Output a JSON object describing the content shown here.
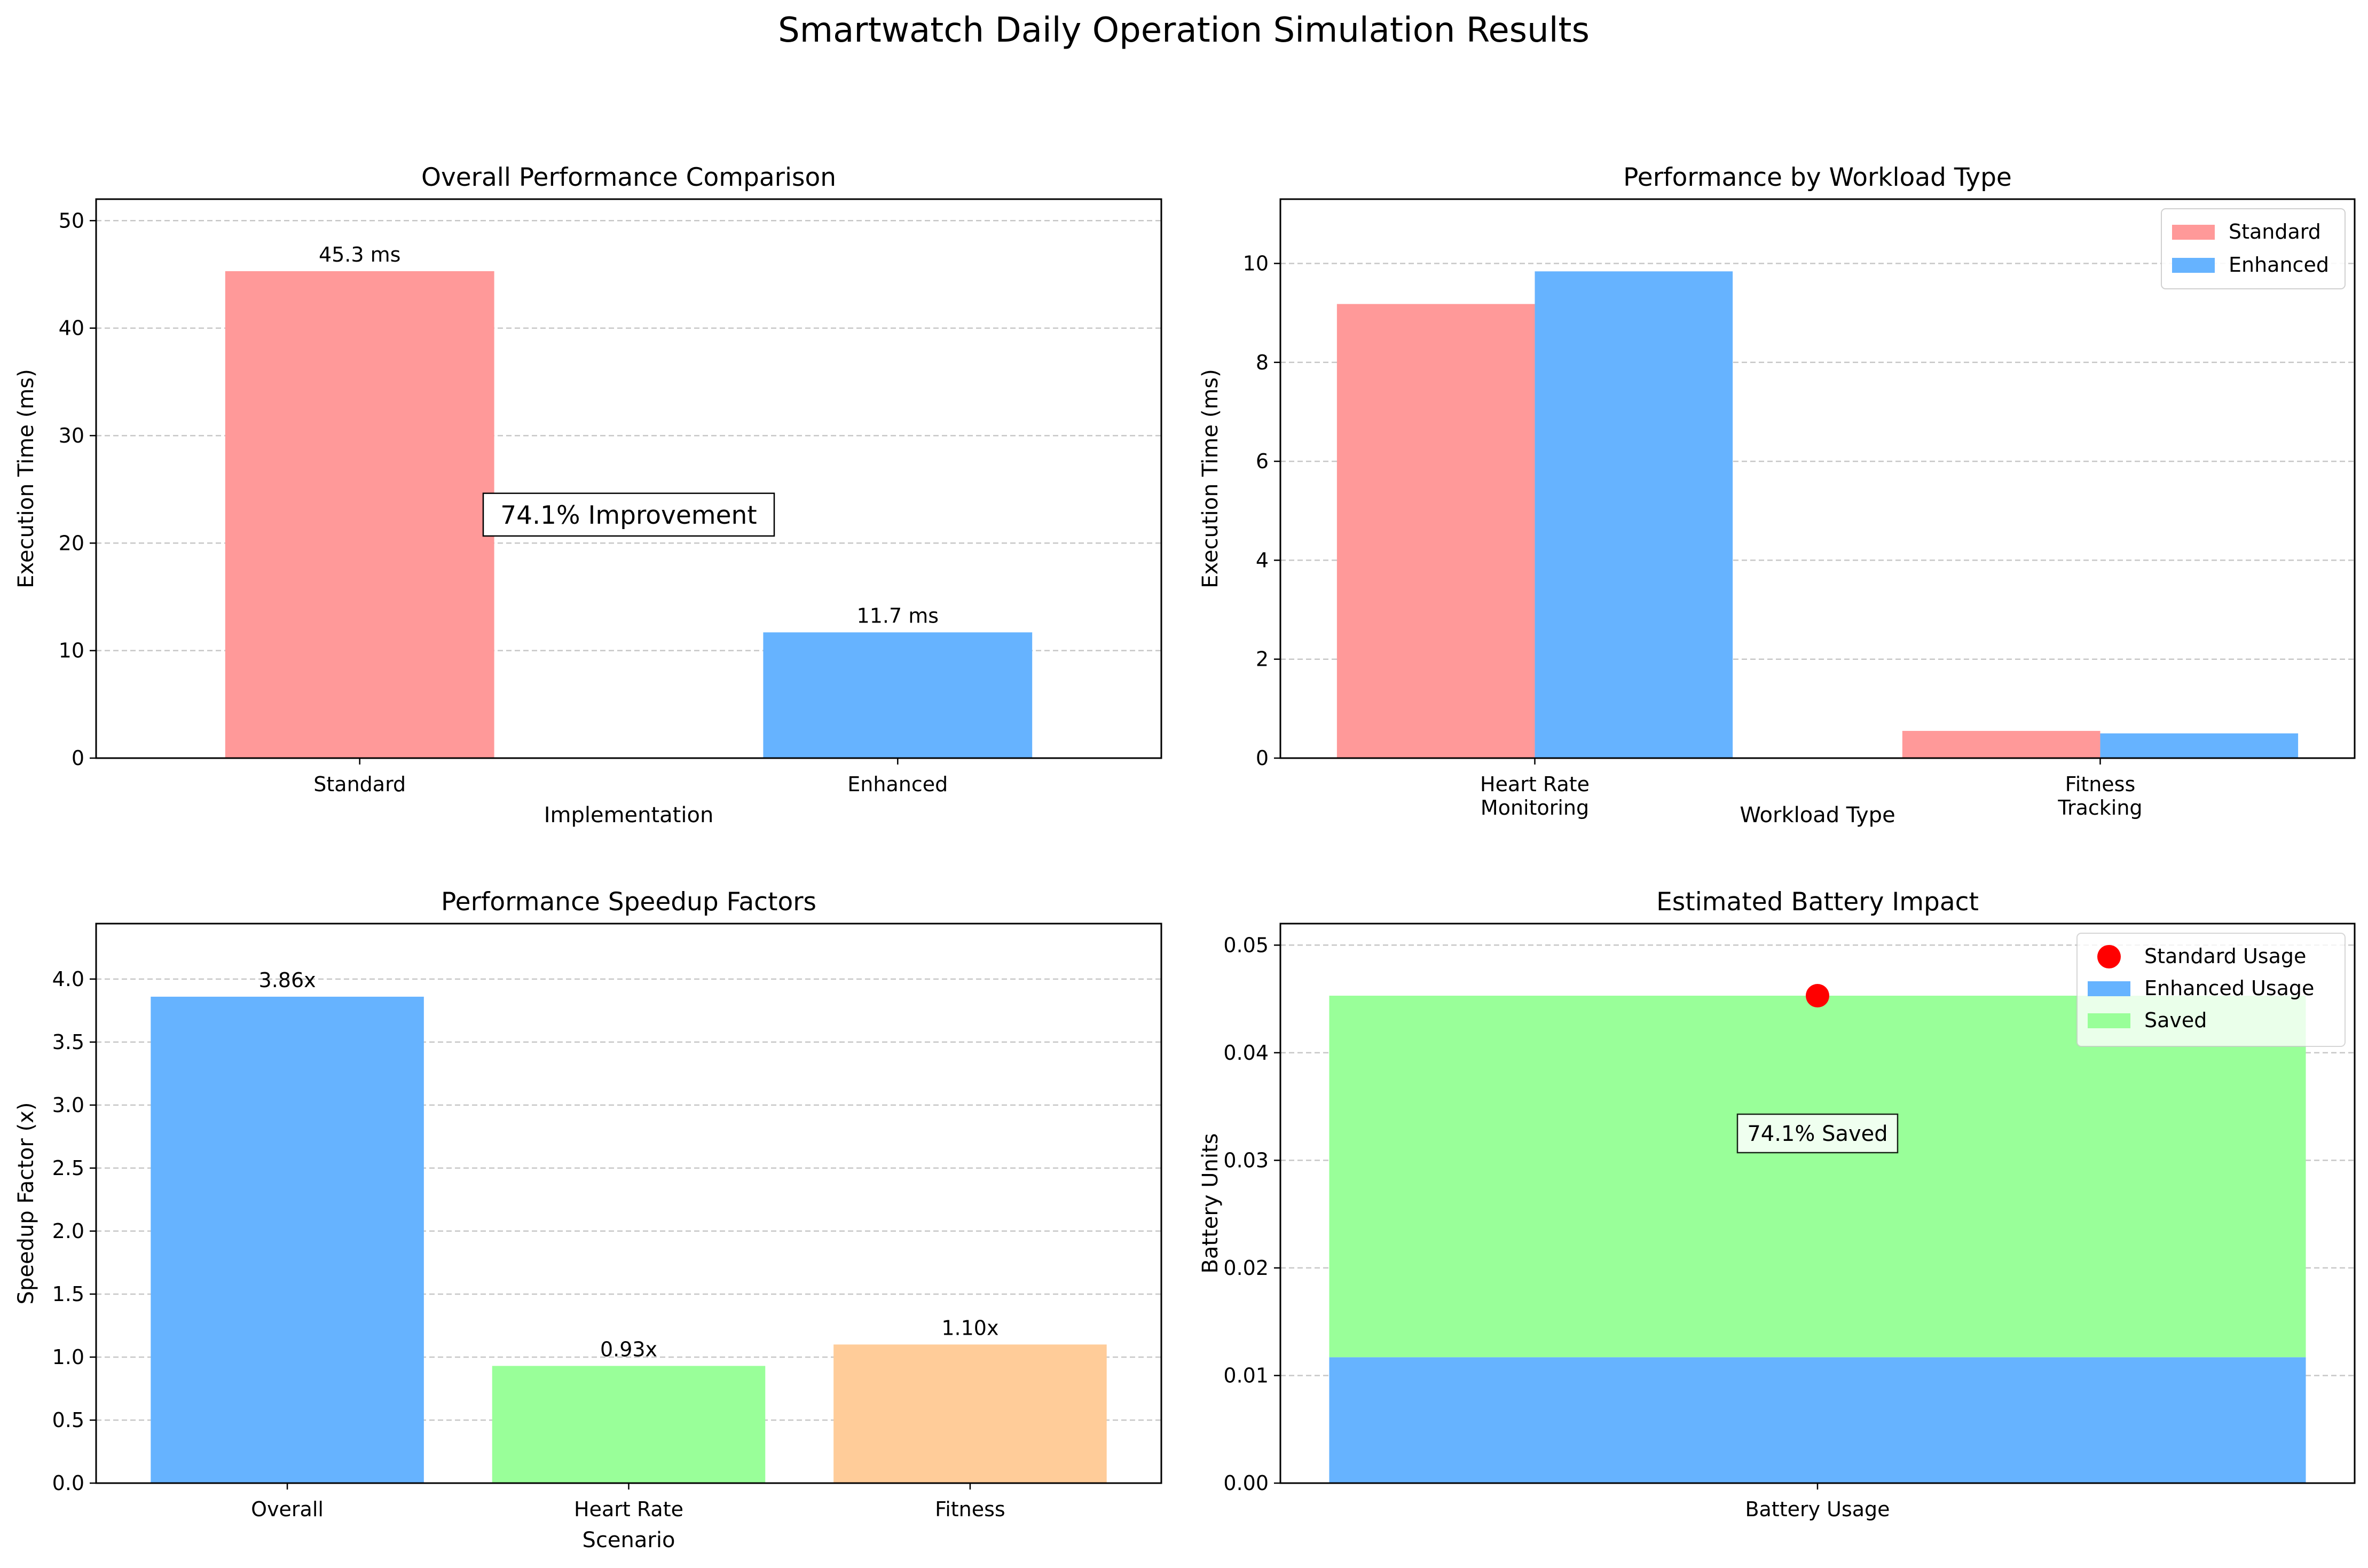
{
  "figure": {
    "title": "Smartwatch Daily Operation Simulation Results"
  },
  "colors": {
    "standard": "#ff9999",
    "enhanced": "#66b3ff",
    "heart": "#99ff99",
    "fitness": "#ffcc99",
    "saved": "#99ff99",
    "marker": "#ff0000",
    "grid": "#b0b0b0"
  },
  "chart_data": [
    {
      "id": "overall",
      "type": "bar",
      "title": "Overall Performance Comparison",
      "xlabel": "Implementation",
      "ylabel": "Execution Time (ms)",
      "categories": [
        "Standard",
        "Enhanced"
      ],
      "values": [
        45.3,
        11.7
      ],
      "value_labels": [
        "45.3 ms",
        "11.7 ms"
      ],
      "ylim": [
        0,
        52
      ],
      "yticks": [
        0,
        10,
        20,
        30,
        40,
        50
      ],
      "ytick_labels": [
        "0",
        "10",
        "20",
        "30",
        "40",
        "50"
      ],
      "annotation": {
        "text": "74.1% Improvement",
        "x": 0.5,
        "y": 22.65
      },
      "grid": "y-dashed",
      "legend": "none"
    },
    {
      "id": "workload",
      "type": "bar",
      "title": "Performance by Workload Type",
      "xlabel": "Workload Type",
      "ylabel": "Execution Time (ms)",
      "categories": [
        [
          "Heart Rate",
          "Monitoring"
        ],
        [
          "Fitness",
          "Tracking"
        ]
      ],
      "series": [
        {
          "name": "Standard",
          "values": [
            9.18,
            0.55
          ]
        },
        {
          "name": "Enhanced",
          "values": [
            9.84,
            0.5
          ]
        }
      ],
      "ylim": [
        0,
        11.3
      ],
      "yticks": [
        0,
        2,
        4,
        6,
        8,
        10
      ],
      "ytick_labels": [
        "0",
        "2",
        "4",
        "6",
        "8",
        "10"
      ],
      "grid": "y-dashed",
      "legend": "top-right"
    },
    {
      "id": "speedup",
      "type": "bar",
      "title": "Performance Speedup Factors",
      "xlabel": "Scenario",
      "ylabel": "Speedup Factor (x)",
      "categories": [
        "Overall",
        "Heart Rate",
        "Fitness"
      ],
      "values": [
        3.86,
        0.93,
        1.1
      ],
      "value_labels": [
        "3.86x",
        "0.93x",
        "1.10x"
      ],
      "ylim": [
        0,
        4.44
      ],
      "yticks": [
        0,
        0.5,
        1,
        1.5,
        2,
        2.5,
        3,
        3.5,
        4
      ],
      "ytick_labels": [
        "0.0",
        "0.5",
        "1.0",
        "1.5",
        "2.0",
        "2.5",
        "3.0",
        "3.5",
        "4.0"
      ],
      "grid": "y-dashed",
      "legend": "none"
    },
    {
      "id": "battery",
      "type": "bar",
      "title": "Estimated Battery Impact",
      "xlabel": "",
      "ylabel": "Battery Units",
      "categories": [
        "Battery Usage"
      ],
      "series": [
        {
          "name": "Enhanced Usage",
          "values": [
            0.0117
          ]
        },
        {
          "name": "Saved",
          "values": [
            0.0336
          ]
        }
      ],
      "marker": {
        "name": "Standard Usage",
        "value": 0.0453
      },
      "annotation": {
        "text": "74.1% Saved",
        "y": 0.0325
      },
      "ylim": [
        0,
        0.052
      ],
      "yticks": [
        0,
        0.01,
        0.02,
        0.03,
        0.04,
        0.05
      ],
      "ytick_labels": [
        "0.00",
        "0.01",
        "0.02",
        "0.03",
        "0.04",
        "0.05"
      ],
      "legend_entries": [
        "Standard Usage",
        "Enhanced Usage",
        "Saved"
      ],
      "grid": "y-dashed",
      "legend": "top-right"
    }
  ]
}
